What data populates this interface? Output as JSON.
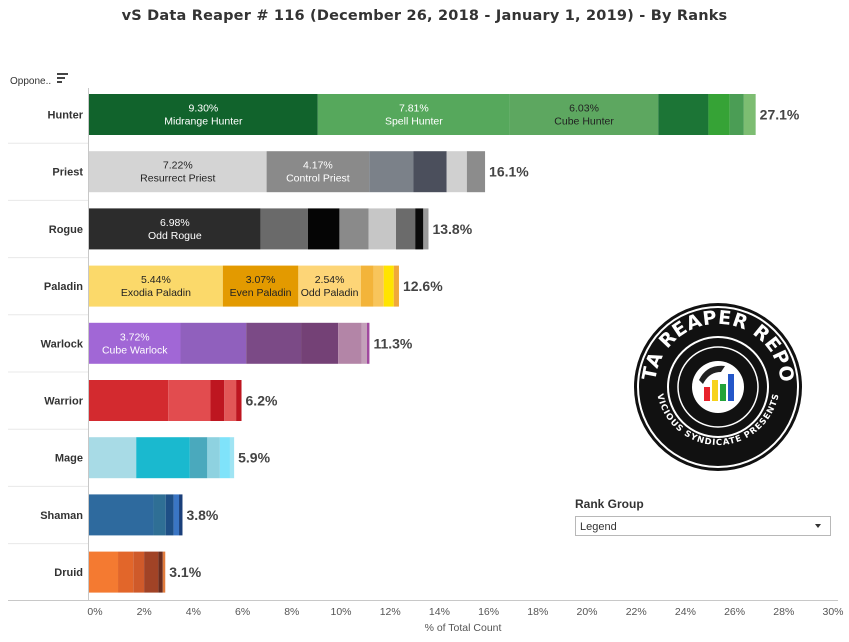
{
  "title": "vS Data Reaper #  116 (December 26, 2018 - January 1, 2019) - By Ranks",
  "axis_header": "Oppone..",
  "rank_group": {
    "title": "Rank Group",
    "selected": "Legend"
  },
  "logo": {
    "top_text": "DATA REAPER REPORT",
    "bottom_text": "VICIOUS SYNDICATE PRESENTS"
  },
  "chart_data": {
    "type": "bar",
    "orientation": "horizontal",
    "stacked": true,
    "xlabel": "% of Total Count",
    "xlim": [
      0,
      30
    ],
    "xticks": [
      "0%",
      "2%",
      "4%",
      "6%",
      "8%",
      "10%",
      "12%",
      "14%",
      "16%",
      "18%",
      "20%",
      "22%",
      "24%",
      "26%",
      "28%",
      "30%"
    ],
    "grid": false,
    "categories": [
      {
        "name": "Hunter",
        "total_label": "27.1%",
        "segments": [
          {
            "value": 9.3,
            "label": "9.30%",
            "name": "Midrange Hunter",
            "color": "#11632c",
            "text": "light"
          },
          {
            "value": 7.81,
            "label": "7.81%",
            "name": "Spell Hunter",
            "color": "#56a85c",
            "text": "light"
          },
          {
            "value": 6.03,
            "label": "6.03%",
            "name": "Cube Hunter",
            "color": "#5da760",
            "text": "dark"
          },
          {
            "value": 2.04,
            "color": "#1c7536"
          },
          {
            "value": 0.87,
            "color": "#36a336"
          },
          {
            "value": 0.57,
            "color": "#4b9d55"
          },
          {
            "value": 0.48,
            "color": "#7dbd72"
          }
        ]
      },
      {
        "name": "Priest",
        "total_label": "16.1%",
        "segments": [
          {
            "value": 7.22,
            "label": "7.22%",
            "name": "Resurrect Priest",
            "color": "#d4d4d4",
            "text": "dark"
          },
          {
            "value": 4.17,
            "label": "4.17%",
            "name": "Control Priest",
            "color": "#8a8a8a",
            "text": "light"
          },
          {
            "value": 1.8,
            "color": "#7b8189"
          },
          {
            "value": 1.35,
            "color": "#4b4f5c"
          },
          {
            "value": 0.82,
            "color": "#d0d0d0"
          },
          {
            "value": 0.74,
            "color": "#8c8c8c"
          }
        ]
      },
      {
        "name": "Rogue",
        "total_label": "13.8%",
        "segments": [
          {
            "value": 6.98,
            "label": "6.98%",
            "name": "Odd Rogue",
            "color": "#2c2c2c",
            "text": "light"
          },
          {
            "value": 1.92,
            "color": "#6a6a6a"
          },
          {
            "value": 1.28,
            "color": "#050505"
          },
          {
            "value": 1.19,
            "color": "#8a8a8a"
          },
          {
            "value": 1.11,
            "color": "#c6c6c6"
          },
          {
            "value": 0.78,
            "color": "#6b6b6b"
          },
          {
            "value": 0.33,
            "color": "#0a0a0a"
          },
          {
            "value": 0.21,
            "color": "#9a9a9a"
          }
        ]
      },
      {
        "name": "Paladin",
        "total_label": "12.6%",
        "segments": [
          {
            "value": 5.44,
            "label": "5.44%",
            "name": "Exodia Paladin",
            "color": "#fbd96a",
            "text": "dark"
          },
          {
            "value": 3.07,
            "label": "3.07%",
            "name": "Even Paladin",
            "color": "#e39a00",
            "text": "dark"
          },
          {
            "value": 2.54,
            "label": "2.54%",
            "name": "Odd Paladin",
            "color": "#fdd577",
            "text": "dark"
          },
          {
            "value": 0.52,
            "color": "#f3b43a"
          },
          {
            "value": 0.41,
            "color": "#f8c55b"
          },
          {
            "value": 0.41,
            "color": "#ffe400"
          },
          {
            "value": 0.21,
            "color": "#f0a83a"
          }
        ]
      },
      {
        "name": "Warlock",
        "total_label": "11.3%",
        "segments": [
          {
            "value": 3.72,
            "label": "3.72%",
            "name": "Cube Warlock",
            "color": "#a167d6",
            "text": "light"
          },
          {
            "value": 2.67,
            "color": "#9060bd"
          },
          {
            "value": 2.23,
            "color": "#7b4a86"
          },
          {
            "value": 1.51,
            "color": "#744176"
          },
          {
            "value": 0.96,
            "color": "#b385a7"
          },
          {
            "value": 0.21,
            "color": "#c4a0ba"
          },
          {
            "value": 0.1,
            "color": "#a0489e"
          }
        ]
      },
      {
        "name": "Warrior",
        "total_label": "6.2%",
        "segments": [
          {
            "value": 3.22,
            "color": "#d32a2f"
          },
          {
            "value": 1.72,
            "color": "#e24c4f"
          },
          {
            "value": 0.56,
            "color": "#be1620"
          },
          {
            "value": 0.48,
            "color": "#e25757"
          },
          {
            "value": 0.22,
            "color": "#be1620"
          }
        ]
      },
      {
        "name": "Mage",
        "total_label": "5.9%",
        "segments": [
          {
            "value": 1.92,
            "color": "#a8dbe6"
          },
          {
            "value": 2.18,
            "color": "#1ab9cf"
          },
          {
            "value": 0.71,
            "color": "#4aa9bd"
          },
          {
            "value": 0.51,
            "color": "#8ed2e0"
          },
          {
            "value": 0.41,
            "color": "#7fe3fa"
          },
          {
            "value": 0.17,
            "color": "#a0e4f3"
          }
        ]
      },
      {
        "name": "Shaman",
        "total_label": "3.8%",
        "segments": [
          {
            "value": 2.62,
            "color": "#2e6a9e"
          },
          {
            "value": 0.5,
            "color": "#2f6f95"
          },
          {
            "value": 0.32,
            "color": "#1e4f86"
          },
          {
            "value": 0.22,
            "color": "#3a75c4"
          },
          {
            "value": 0.14,
            "color": "#1a3f7a"
          }
        ]
      },
      {
        "name": "Druid",
        "total_label": "3.1%",
        "segments": [
          {
            "value": 1.18,
            "color": "#f47a31"
          },
          {
            "value": 0.62,
            "color": "#e2662a"
          },
          {
            "value": 0.44,
            "color": "#cf5a2a"
          },
          {
            "value": 0.58,
            "color": "#a14326"
          },
          {
            "value": 0.18,
            "color": "#6a2c1e"
          },
          {
            "value": 0.1,
            "color": "#e27c3c"
          }
        ]
      }
    ]
  }
}
